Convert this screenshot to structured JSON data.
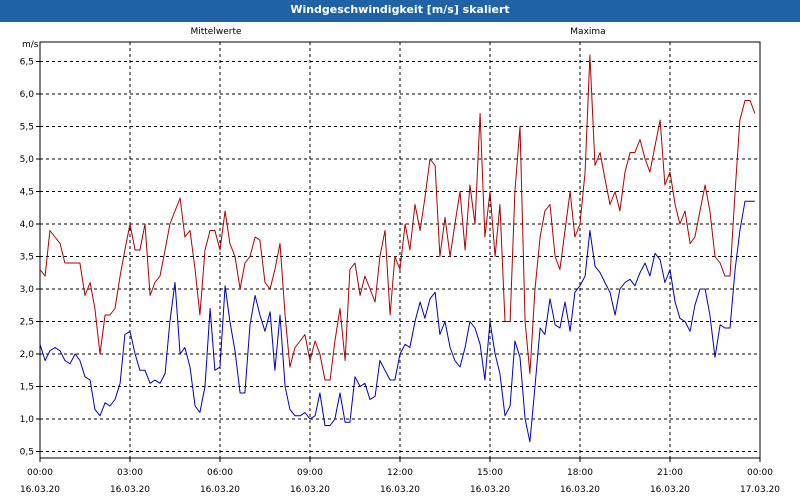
{
  "window": {
    "title": "Windgeschwindigkeit [m/s] skaliert"
  },
  "chart_data": {
    "type": "line",
    "title": "Windgeschwindigkeit [m/s] skaliert",
    "ylabel": "m/s",
    "ylim": [
      0.4,
      6.8
    ],
    "xlim": [
      0,
      24
    ],
    "grid": true,
    "yticks": [
      "0,5",
      "1,0",
      "1,5",
      "2,0",
      "2,5",
      "3,0",
      "3,5",
      "4,0",
      "4,5",
      "5,0",
      "5,5",
      "6,0",
      "6,5"
    ],
    "ytick_values": [
      0.5,
      1.0,
      1.5,
      2.0,
      2.5,
      3.0,
      3.5,
      4.0,
      4.5,
      5.0,
      5.5,
      6.0,
      6.5
    ],
    "xticks": [
      {
        "time": "00:00",
        "date": "16.03.20"
      },
      {
        "time": "03:00",
        "date": "16.03.20"
      },
      {
        "time": "06:00",
        "date": "16.03.20"
      },
      {
        "time": "09:00",
        "date": "16.03.20"
      },
      {
        "time": "12:00",
        "date": "16.03.20"
      },
      {
        "time": "15:00",
        "date": "16.03.20"
      },
      {
        "time": "18:00",
        "date": "16.03.20"
      },
      {
        "time": "21:00",
        "date": "16.03.20"
      },
      {
        "time": "00:00",
        "date": "17.03.20"
      }
    ],
    "xtick_values": [
      0,
      3,
      6,
      9,
      12,
      15,
      18,
      21,
      24
    ],
    "series": [
      {
        "name": "Mittelwerte",
        "color": "#0000c0",
        "points": [
          [
            0.0,
            2.15
          ],
          [
            0.17,
            1.9
          ],
          [
            0.33,
            2.05
          ],
          [
            0.5,
            2.1
          ],
          [
            0.67,
            2.05
          ],
          [
            0.83,
            1.9
          ],
          [
            1.0,
            1.85
          ],
          [
            1.17,
            2.0
          ],
          [
            1.33,
            1.9
          ],
          [
            1.5,
            1.65
          ],
          [
            1.67,
            1.6
          ],
          [
            1.83,
            1.15
          ],
          [
            2.0,
            1.05
          ],
          [
            2.17,
            1.25
          ],
          [
            2.33,
            1.2
          ],
          [
            2.5,
            1.3
          ],
          [
            2.67,
            1.55
          ],
          [
            2.83,
            2.3
          ],
          [
            3.0,
            2.35
          ],
          [
            3.17,
            2.0
          ],
          [
            3.33,
            1.75
          ],
          [
            3.5,
            1.75
          ],
          [
            3.67,
            1.55
          ],
          [
            3.83,
            1.6
          ],
          [
            4.0,
            1.55
          ],
          [
            4.17,
            1.7
          ],
          [
            4.33,
            2.5
          ],
          [
            4.5,
            3.1
          ],
          [
            4.67,
            2.0
          ],
          [
            4.83,
            2.1
          ],
          [
            5.0,
            1.8
          ],
          [
            5.17,
            1.2
          ],
          [
            5.33,
            1.1
          ],
          [
            5.5,
            1.5
          ],
          [
            5.67,
            2.7
          ],
          [
            5.83,
            1.75
          ],
          [
            6.0,
            1.8
          ],
          [
            6.17,
            3.05
          ],
          [
            6.33,
            2.5
          ],
          [
            6.5,
            2.05
          ],
          [
            6.67,
            1.4
          ],
          [
            6.83,
            1.4
          ],
          [
            7.0,
            2.45
          ],
          [
            7.17,
            2.9
          ],
          [
            7.33,
            2.6
          ],
          [
            7.5,
            2.35
          ],
          [
            7.67,
            2.65
          ],
          [
            7.83,
            1.75
          ],
          [
            8.0,
            2.6
          ],
          [
            8.17,
            1.5
          ],
          [
            8.33,
            1.15
          ],
          [
            8.5,
            1.05
          ],
          [
            8.67,
            1.05
          ],
          [
            8.83,
            1.1
          ],
          [
            9.0,
            1.0
          ],
          [
            9.17,
            1.05
          ],
          [
            9.33,
            1.4
          ],
          [
            9.5,
            0.9
          ],
          [
            9.67,
            0.9
          ],
          [
            9.83,
            1.0
          ],
          [
            10.0,
            1.4
          ],
          [
            10.17,
            0.95
          ],
          [
            10.33,
            0.95
          ],
          [
            10.5,
            1.65
          ],
          [
            10.67,
            1.5
          ],
          [
            10.83,
            1.55
          ],
          [
            11.0,
            1.3
          ],
          [
            11.17,
            1.35
          ],
          [
            11.33,
            1.9
          ],
          [
            11.5,
            1.75
          ],
          [
            11.67,
            1.6
          ],
          [
            11.83,
            1.6
          ],
          [
            12.0,
            2.0
          ],
          [
            12.17,
            2.15
          ],
          [
            12.33,
            2.1
          ],
          [
            12.5,
            2.5
          ],
          [
            12.67,
            2.8
          ],
          [
            12.83,
            2.55
          ],
          [
            13.0,
            2.85
          ],
          [
            13.17,
            2.95
          ],
          [
            13.33,
            2.3
          ],
          [
            13.5,
            2.5
          ],
          [
            13.67,
            2.1
          ],
          [
            13.83,
            1.9
          ],
          [
            14.0,
            1.8
          ],
          [
            14.17,
            2.1
          ],
          [
            14.33,
            2.5
          ],
          [
            14.5,
            2.4
          ],
          [
            14.67,
            2.15
          ],
          [
            14.83,
            1.6
          ],
          [
            15.0,
            2.5
          ],
          [
            15.17,
            2.0
          ],
          [
            15.33,
            1.7
          ],
          [
            15.5,
            1.05
          ],
          [
            15.67,
            1.2
          ],
          [
            15.83,
            2.2
          ],
          [
            16.0,
            1.95
          ],
          [
            16.17,
            1.0
          ],
          [
            16.33,
            0.65
          ],
          [
            16.5,
            1.5
          ],
          [
            16.67,
            2.4
          ],
          [
            16.83,
            2.3
          ],
          [
            17.0,
            2.85
          ],
          [
            17.17,
            2.45
          ],
          [
            17.33,
            2.4
          ],
          [
            17.5,
            2.8
          ],
          [
            17.67,
            2.35
          ],
          [
            17.83,
            2.95
          ],
          [
            18.0,
            3.05
          ],
          [
            18.17,
            3.2
          ],
          [
            18.33,
            3.9
          ],
          [
            18.5,
            3.35
          ],
          [
            18.67,
            3.25
          ],
          [
            18.83,
            3.1
          ],
          [
            19.0,
            2.95
          ],
          [
            19.17,
            2.6
          ],
          [
            19.33,
            3.0
          ],
          [
            19.5,
            3.1
          ],
          [
            19.67,
            3.15
          ],
          [
            19.83,
            3.05
          ],
          [
            20.0,
            3.25
          ],
          [
            20.17,
            3.4
          ],
          [
            20.33,
            3.2
          ],
          [
            20.5,
            3.55
          ],
          [
            20.67,
            3.45
          ],
          [
            20.83,
            3.1
          ],
          [
            21.0,
            3.3
          ],
          [
            21.17,
            2.8
          ],
          [
            21.33,
            2.55
          ],
          [
            21.5,
            2.5
          ],
          [
            21.67,
            2.35
          ],
          [
            21.83,
            2.75
          ],
          [
            22.0,
            3.0
          ],
          [
            22.17,
            3.0
          ],
          [
            22.33,
            2.6
          ],
          [
            22.5,
            1.95
          ],
          [
            22.67,
            2.45
          ],
          [
            22.83,
            2.4
          ],
          [
            23.0,
            2.4
          ],
          [
            23.17,
            3.3
          ],
          [
            23.33,
            3.9
          ],
          [
            23.5,
            4.35
          ],
          [
            23.67,
            4.35
          ],
          [
            23.83,
            4.35
          ]
        ]
      },
      {
        "name": "Maxima",
        "color": "#b00000",
        "points": [
          [
            0.0,
            3.3
          ],
          [
            0.17,
            3.2
          ],
          [
            0.33,
            3.9
          ],
          [
            0.5,
            3.8
          ],
          [
            0.67,
            3.7
          ],
          [
            0.83,
            3.4
          ],
          [
            1.0,
            3.4
          ],
          [
            1.17,
            3.4
          ],
          [
            1.33,
            3.4
          ],
          [
            1.5,
            2.9
          ],
          [
            1.67,
            3.1
          ],
          [
            1.83,
            2.7
          ],
          [
            2.0,
            2.0
          ],
          [
            2.17,
            2.6
          ],
          [
            2.33,
            2.6
          ],
          [
            2.5,
            2.7
          ],
          [
            2.67,
            3.2
          ],
          [
            2.83,
            3.6
          ],
          [
            3.0,
            4.0
          ],
          [
            3.17,
            3.6
          ],
          [
            3.33,
            3.6
          ],
          [
            3.5,
            4.0
          ],
          [
            3.67,
            2.9
          ],
          [
            3.83,
            3.1
          ],
          [
            4.0,
            3.2
          ],
          [
            4.17,
            3.6
          ],
          [
            4.33,
            4.0
          ],
          [
            4.5,
            4.2
          ],
          [
            4.67,
            4.4
          ],
          [
            4.83,
            3.8
          ],
          [
            5.0,
            3.9
          ],
          [
            5.17,
            3.3
          ],
          [
            5.33,
            2.6
          ],
          [
            5.5,
            3.6
          ],
          [
            5.67,
            3.9
          ],
          [
            5.83,
            3.9
          ],
          [
            6.0,
            3.6
          ],
          [
            6.17,
            4.2
          ],
          [
            6.33,
            3.7
          ],
          [
            6.5,
            3.5
          ],
          [
            6.67,
            3.0
          ],
          [
            6.83,
            3.4
          ],
          [
            7.0,
            3.5
          ],
          [
            7.17,
            3.8
          ],
          [
            7.33,
            3.75
          ],
          [
            7.5,
            3.1
          ],
          [
            7.67,
            3.0
          ],
          [
            7.83,
            3.3
          ],
          [
            8.0,
            3.7
          ],
          [
            8.17,
            2.6
          ],
          [
            8.33,
            1.8
          ],
          [
            8.5,
            2.1
          ],
          [
            8.67,
            2.2
          ],
          [
            8.83,
            2.3
          ],
          [
            9.0,
            1.9
          ],
          [
            9.17,
            2.2
          ],
          [
            9.33,
            2.0
          ],
          [
            9.5,
            1.6
          ],
          [
            9.67,
            1.6
          ],
          [
            9.83,
            2.2
          ],
          [
            10.0,
            2.7
          ],
          [
            10.17,
            1.9
          ],
          [
            10.33,
            3.3
          ],
          [
            10.5,
            3.4
          ],
          [
            10.67,
            2.9
          ],
          [
            10.83,
            3.2
          ],
          [
            11.0,
            3.0
          ],
          [
            11.17,
            2.8
          ],
          [
            11.33,
            3.5
          ],
          [
            11.5,
            3.9
          ],
          [
            11.67,
            2.6
          ],
          [
            11.83,
            3.5
          ],
          [
            12.0,
            3.3
          ],
          [
            12.17,
            4.0
          ],
          [
            12.33,
            3.6
          ],
          [
            12.5,
            4.3
          ],
          [
            12.67,
            3.9
          ],
          [
            12.83,
            4.4
          ],
          [
            13.0,
            5.0
          ],
          [
            13.17,
            4.9
          ],
          [
            13.33,
            3.5
          ],
          [
            13.5,
            4.1
          ],
          [
            13.67,
            3.5
          ],
          [
            13.83,
            4.0
          ],
          [
            14.0,
            4.5
          ],
          [
            14.17,
            3.6
          ],
          [
            14.33,
            4.6
          ],
          [
            14.5,
            4.0
          ],
          [
            14.67,
            5.7
          ],
          [
            14.83,
            3.8
          ],
          [
            15.0,
            4.5
          ],
          [
            15.17,
            3.5
          ],
          [
            15.33,
            4.3
          ],
          [
            15.5,
            2.5
          ],
          [
            15.67,
            2.5
          ],
          [
            15.83,
            4.5
          ],
          [
            16.0,
            5.5
          ],
          [
            16.17,
            2.5
          ],
          [
            16.33,
            1.7
          ],
          [
            16.5,
            3.0
          ],
          [
            16.67,
            3.8
          ],
          [
            16.83,
            4.2
          ],
          [
            17.0,
            4.3
          ],
          [
            17.17,
            3.5
          ],
          [
            17.33,
            3.3
          ],
          [
            17.5,
            3.9
          ],
          [
            17.67,
            4.5
          ],
          [
            17.83,
            3.8
          ],
          [
            18.0,
            4.0
          ],
          [
            18.17,
            4.8
          ],
          [
            18.33,
            6.6
          ],
          [
            18.5,
            4.9
          ],
          [
            18.67,
            5.1
          ],
          [
            18.83,
            4.7
          ],
          [
            19.0,
            4.3
          ],
          [
            19.17,
            4.5
          ],
          [
            19.33,
            4.2
          ],
          [
            19.5,
            4.8
          ],
          [
            19.67,
            5.1
          ],
          [
            19.83,
            5.1
          ],
          [
            20.0,
            5.3
          ],
          [
            20.17,
            5.0
          ],
          [
            20.33,
            4.8
          ],
          [
            20.5,
            5.2
          ],
          [
            20.67,
            5.6
          ],
          [
            20.83,
            4.6
          ],
          [
            21.0,
            4.8
          ],
          [
            21.17,
            4.3
          ],
          [
            21.33,
            4.0
          ],
          [
            21.5,
            4.2
          ],
          [
            21.67,
            3.7
          ],
          [
            21.83,
            3.8
          ],
          [
            22.0,
            4.2
          ],
          [
            22.17,
            4.6
          ],
          [
            22.33,
            4.2
          ],
          [
            22.5,
            3.5
          ],
          [
            22.67,
            3.4
          ],
          [
            22.83,
            3.2
          ],
          [
            23.0,
            3.2
          ],
          [
            23.17,
            4.5
          ],
          [
            23.33,
            5.6
          ],
          [
            23.5,
            5.9
          ],
          [
            23.67,
            5.9
          ],
          [
            23.83,
            5.7
          ]
        ]
      }
    ]
  }
}
